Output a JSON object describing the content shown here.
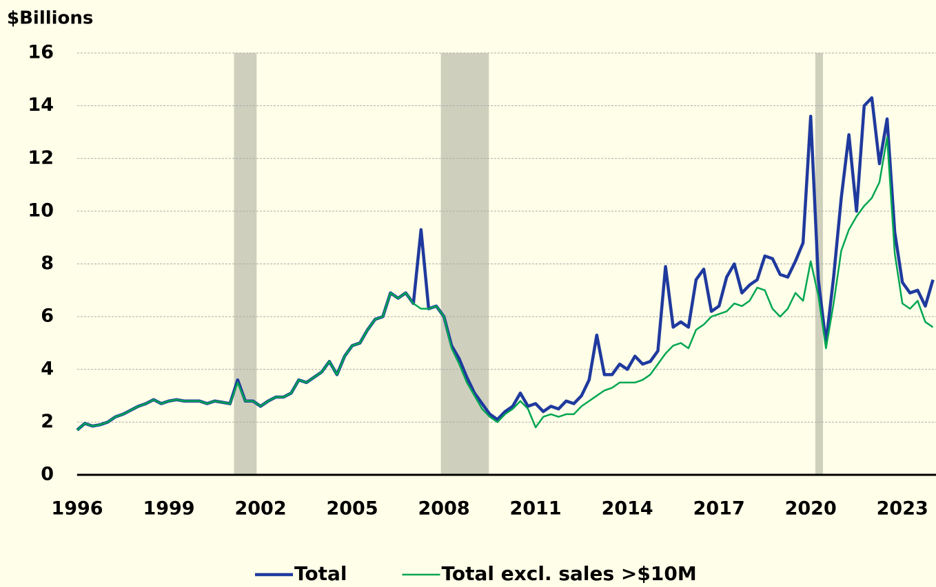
{
  "chart_data": {
    "type": "line",
    "y_label": "$Billions",
    "xlim": [
      1996,
      2024.1
    ],
    "ylim": [
      0,
      16
    ],
    "xticks": [
      1996,
      1999,
      2002,
      2005,
      2008,
      2011,
      2014,
      2017,
      2020,
      2023
    ],
    "yticks": [
      0,
      2,
      4,
      6,
      8,
      10,
      12,
      14,
      16
    ],
    "grid": true,
    "legend": "bottom",
    "recessions": [
      [
        2001.13,
        2001.87
      ],
      [
        2007.9,
        2009.47
      ],
      [
        2020.15,
        2020.4
      ]
    ],
    "recession_color": "#cfcfbd",
    "x": [
      1996,
      1996.25,
      1996.5,
      1996.75,
      1997,
      1997.25,
      1997.5,
      1997.75,
      1998,
      1998.25,
      1998.5,
      1998.75,
      1999,
      1999.25,
      1999.5,
      1999.75,
      2000,
      2000.25,
      2000.5,
      2000.75,
      2001,
      2001.25,
      2001.5,
      2001.75,
      2002,
      2002.25,
      2002.5,
      2002.75,
      2003,
      2003.25,
      2003.5,
      2003.75,
      2004,
      2004.25,
      2004.5,
      2004.75,
      2005,
      2005.25,
      2005.5,
      2005.75,
      2006,
      2006.25,
      2006.5,
      2006.75,
      2007,
      2007.25,
      2007.5,
      2007.75,
      2008,
      2008.25,
      2008.5,
      2008.75,
      2009,
      2009.25,
      2009.5,
      2009.75,
      2010,
      2010.25,
      2010.5,
      2010.75,
      2011,
      2011.25,
      2011.5,
      2011.75,
      2012,
      2012.25,
      2012.5,
      2012.75,
      2013,
      2013.25,
      2013.5,
      2013.75,
      2014,
      2014.25,
      2014.5,
      2014.75,
      2015,
      2015.25,
      2015.5,
      2015.75,
      2016,
      2016.25,
      2016.5,
      2016.75,
      2017,
      2017.25,
      2017.5,
      2017.75,
      2018,
      2018.25,
      2018.5,
      2018.75,
      2019,
      2019.25,
      2019.5,
      2019.75,
      2020,
      2020.25,
      2020.5,
      2020.75,
      2021,
      2021.25,
      2021.5,
      2021.75,
      2022,
      2022.25,
      2022.5,
      2022.75,
      2023,
      2023.25,
      2023.5,
      2023.75,
      2024
    ],
    "series": [
      {
        "name": "Total",
        "color": "#1f3a9e",
        "width": 4.5,
        "values": [
          1.7,
          1.95,
          1.85,
          1.9,
          2.0,
          2.2,
          2.3,
          2.45,
          2.6,
          2.7,
          2.85,
          2.7,
          2.8,
          2.85,
          2.8,
          2.8,
          2.8,
          2.7,
          2.8,
          2.75,
          2.7,
          3.6,
          2.8,
          2.8,
          2.6,
          2.8,
          2.95,
          2.95,
          3.1,
          3.6,
          3.5,
          3.7,
          3.9,
          4.3,
          3.8,
          4.5,
          4.9,
          5.0,
          5.5,
          5.9,
          6.0,
          6.9,
          6.7,
          6.9,
          6.5,
          9.3,
          6.3,
          6.4,
          6.0,
          4.9,
          4.4,
          3.7,
          3.1,
          2.7,
          2.3,
          2.1,
          2.4,
          2.6,
          3.1,
          2.6,
          2.7,
          2.4,
          2.6,
          2.5,
          2.8,
          2.7,
          3.0,
          3.6,
          5.3,
          3.8,
          3.8,
          4.2,
          4.0,
          4.5,
          4.2,
          4.3,
          4.7,
          7.9,
          5.6,
          5.8,
          5.6,
          7.4,
          7.8,
          6.2,
          6.4,
          7.5,
          8.0,
          6.9,
          7.2,
          7.4,
          8.3,
          8.2,
          7.6,
          7.5,
          8.1,
          8.8,
          13.6,
          7.4,
          5.0,
          7.5,
          10.5,
          12.9,
          10.0,
          14.0,
          14.3,
          11.8,
          13.5,
          9.2,
          7.3,
          6.9,
          7.0,
          6.4,
          7.4
        ]
      },
      {
        "name": "Total excl. sales >$10M",
        "color": "#00a651",
        "width": 2.5,
        "values": [
          1.7,
          1.95,
          1.85,
          1.9,
          2.0,
          2.2,
          2.3,
          2.45,
          2.6,
          2.7,
          2.85,
          2.7,
          2.8,
          2.85,
          2.8,
          2.8,
          2.8,
          2.7,
          2.8,
          2.75,
          2.7,
          3.5,
          2.8,
          2.8,
          2.6,
          2.8,
          2.95,
          2.95,
          3.1,
          3.6,
          3.5,
          3.7,
          3.9,
          4.3,
          3.8,
          4.5,
          4.9,
          5.0,
          5.5,
          5.9,
          6.0,
          6.9,
          6.7,
          6.9,
          6.5,
          6.3,
          6.3,
          6.4,
          6.0,
          4.8,
          4.2,
          3.5,
          3.0,
          2.5,
          2.2,
          2.0,
          2.3,
          2.5,
          2.8,
          2.5,
          1.8,
          2.2,
          2.3,
          2.2,
          2.3,
          2.3,
          2.6,
          2.8,
          3.0,
          3.2,
          3.3,
          3.5,
          3.5,
          3.5,
          3.6,
          3.8,
          4.2,
          4.6,
          4.9,
          5.0,
          4.8,
          5.5,
          5.7,
          6.0,
          6.1,
          6.2,
          6.5,
          6.4,
          6.6,
          7.1,
          7.0,
          6.3,
          6.0,
          6.3,
          6.9,
          6.6,
          8.1,
          6.8,
          4.8,
          6.5,
          8.5,
          9.3,
          9.8,
          10.2,
          10.5,
          11.1,
          12.8,
          8.4,
          6.5,
          6.3,
          6.6,
          5.8,
          5.6
        ]
      }
    ]
  }
}
